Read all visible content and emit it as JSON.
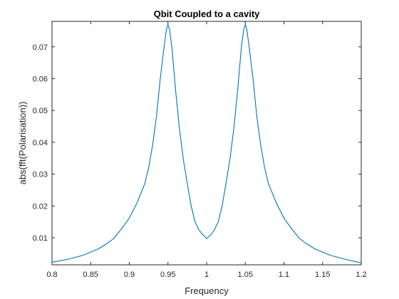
{
  "chart_data": {
    "type": "line",
    "title": "Qbit Coupled to a cavity",
    "xlabel": "Frequency",
    "ylabel": "abs(fft(Polarisation))",
    "xlim": [
      0.8,
      1.2
    ],
    "ylim": [
      0.0015,
      0.078
    ],
    "x_ticks": [
      "0.8",
      "0.85",
      "0.9",
      "0.95",
      "1",
      "1.05",
      "1.1",
      "1.15",
      "1.2"
    ],
    "y_ticks": [
      "0.01",
      "0.02",
      "0.03",
      "0.04",
      "0.05",
      "0.06",
      "0.07"
    ],
    "grid": false,
    "line_color": "#0072BD",
    "series": [
      {
        "x": [
          0.8,
          0.82,
          0.84,
          0.86,
          0.87,
          0.88,
          0.89,
          0.9,
          0.91,
          0.92,
          0.925,
          0.93,
          0.935,
          0.94,
          0.945,
          0.948,
          0.95,
          0.952,
          0.955,
          0.96,
          0.965,
          0.97,
          0.975,
          0.98,
          0.985,
          0.99,
          0.995,
          1.0,
          1.005,
          1.01,
          1.015,
          1.02,
          1.025,
          1.03,
          1.035,
          1.04,
          1.045,
          1.048,
          1.05,
          1.052,
          1.055,
          1.06,
          1.065,
          1.07,
          1.075,
          1.08,
          1.09,
          1.1,
          1.11,
          1.12,
          1.13,
          1.14,
          1.16,
          1.18,
          1.2
        ],
        "y": [
          0.0023,
          0.0032,
          0.0045,
          0.0065,
          0.008,
          0.0098,
          0.0128,
          0.0162,
          0.021,
          0.027,
          0.032,
          0.039,
          0.048,
          0.06,
          0.07,
          0.0755,
          0.077,
          0.0755,
          0.07,
          0.056,
          0.044,
          0.0345,
          0.027,
          0.02,
          0.015,
          0.0125,
          0.011,
          0.0098,
          0.0108,
          0.0125,
          0.015,
          0.02,
          0.027,
          0.0345,
          0.044,
          0.056,
          0.07,
          0.0755,
          0.077,
          0.0755,
          0.07,
          0.06,
          0.048,
          0.039,
          0.032,
          0.027,
          0.021,
          0.0162,
          0.0128,
          0.0098,
          0.008,
          0.0065,
          0.0045,
          0.0032,
          0.0021
        ]
      }
    ]
  }
}
